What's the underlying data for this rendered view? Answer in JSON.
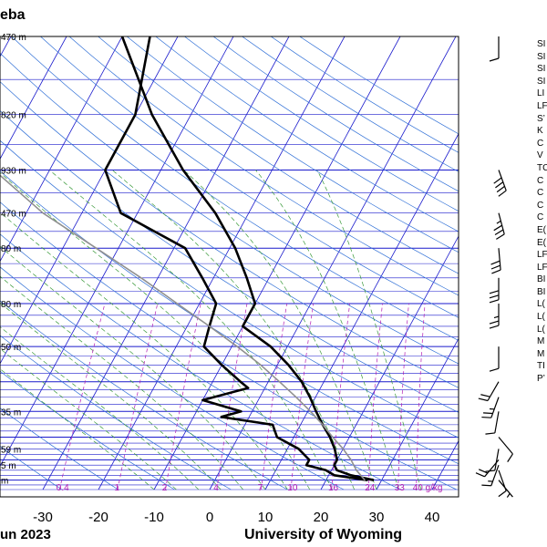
{
  "header": {
    "station_name": "eba",
    "date": "un 2023",
    "credit": "University of Wyoming"
  },
  "indices_labels": [
    "SI",
    "SI",
    "SI",
    "SI",
    "LI",
    "LF",
    "S’",
    "K",
    "C",
    "V",
    "TC",
    "C",
    "C",
    "C",
    "C",
    "E(",
    "E(",
    "LF",
    "LF",
    "BI",
    "BI",
    "L(",
    "L(",
    "L(",
    "M",
    "M",
    "TI",
    "P’"
  ],
  "colors": {
    "background": "#ffffff",
    "isobar": "#1a1acc",
    "isotherm": "#1a1acc",
    "dry_adiabat": "#2f6fd6",
    "moist_adiabat": "#3a9a3a",
    "mixing_ratio": "#b21bb2",
    "profile": "#000000",
    "parcel": "#909090"
  },
  "chart_data": {
    "type": "line",
    "title": "",
    "xlabel": "",
    "ylabel": "",
    "x_axis": {
      "ticks": [
        -30,
        -20,
        -10,
        0,
        10,
        20,
        30,
        40
      ]
    },
    "y_axis": {
      "scale": "log-pressure",
      "pressure_range_hPa": [
        1050,
        100
      ],
      "height_labels_m": [
        "470 m",
        "820 m",
        "930 m",
        "470 m",
        "80 m",
        "80 m",
        "50 m",
        "35 m",
        "59 m",
        "5 m",
        "m"
      ]
    },
    "mixing_ratio_labels": [
      "0.4",
      "1",
      "2",
      "4",
      "7",
      "10",
      "16",
      "24",
      "33",
      "40 g/kg"
    ],
    "series": [
      {
        "key": "temperature",
        "points": [
          [
            28.6,
            1000
          ],
          [
            24,
            975
          ],
          [
            21,
            950
          ],
          [
            20,
            925
          ],
          [
            20,
            900
          ],
          [
            18.5,
            850
          ],
          [
            16.5,
            800
          ],
          [
            14,
            750
          ],
          [
            11.5,
            700
          ],
          [
            9,
            650
          ],
          [
            6,
            600
          ],
          [
            2,
            550
          ],
          [
            -3,
            500
          ],
          [
            -10,
            450
          ],
          [
            -10,
            400
          ],
          [
            -14,
            350
          ],
          [
            -19,
            300
          ],
          [
            -26,
            250
          ],
          [
            -36,
            200
          ],
          [
            -47,
            150
          ],
          [
            -60,
            100
          ]
        ]
      },
      {
        "key": "dewpoint",
        "points": [
          [
            27.5,
            1000
          ],
          [
            21,
            975
          ],
          [
            19,
            950
          ],
          [
            15,
            925
          ],
          [
            15,
            900
          ],
          [
            12,
            850
          ],
          [
            7,
            800
          ],
          [
            5,
            750
          ],
          [
            -5,
            720
          ],
          [
            -2,
            700
          ],
          [
            -10,
            660
          ],
          [
            -3,
            620
          ],
          [
            -5,
            600
          ],
          [
            -10,
            550
          ],
          [
            -15,
            500
          ],
          [
            -16,
            450
          ],
          [
            -17,
            400
          ],
          [
            -22,
            350
          ],
          [
            -28,
            300
          ],
          [
            -43,
            250
          ],
          [
            -50,
            200
          ],
          [
            -50,
            150
          ],
          [
            -55,
            100
          ]
        ]
      },
      {
        "key": "parcel",
        "points": [
          [
            27,
            1000
          ],
          [
            24.5,
            950
          ],
          [
            22.5,
            900
          ],
          [
            20,
            850
          ],
          [
            17,
            800
          ],
          [
            14,
            750
          ],
          [
            10.5,
            700
          ],
          [
            6.5,
            650
          ],
          [
            2,
            600
          ],
          [
            -3,
            550
          ],
          [
            -9,
            500
          ],
          [
            -16,
            450
          ],
          [
            -24,
            400
          ],
          [
            -33,
            350
          ],
          [
            -44,
            300
          ],
          [
            -57,
            250
          ],
          [
            -70,
            200
          ]
        ]
      }
    ],
    "wind_barbs": [
      {
        "p": 1000,
        "dir": 140,
        "kt": 5
      },
      {
        "p": 950,
        "dir": 160,
        "kt": 10
      },
      {
        "p": 925,
        "dir": 200,
        "kt": 15
      },
      {
        "p": 900,
        "dir": 220,
        "kt": 20
      },
      {
        "p": 850,
        "dir": 190,
        "kt": 10
      },
      {
        "p": 800,
        "dir": 140,
        "kt": 10
      },
      {
        "p": 700,
        "dir": 190,
        "kt": 10
      },
      {
        "p": 650,
        "dir": 200,
        "kt": 25
      },
      {
        "p": 600,
        "dir": 210,
        "kt": 20
      },
      {
        "p": 500,
        "dir": 180,
        "kt": 10
      },
      {
        "p": 400,
        "dir": 180,
        "kt": 25
      },
      {
        "p": 350,
        "dir": 180,
        "kt": 30
      },
      {
        "p": 300,
        "dir": 175,
        "kt": 30
      },
      {
        "p": 250,
        "dir": 165,
        "kt": 35
      },
      {
        "p": 200,
        "dir": 160,
        "kt": 40
      },
      {
        "p": 100,
        "dir": 180,
        "kt": 10
      }
    ]
  }
}
